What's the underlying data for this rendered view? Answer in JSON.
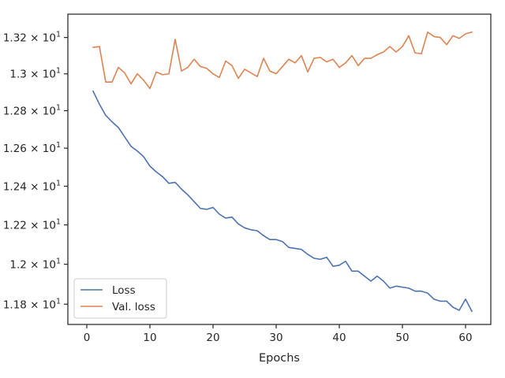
{
  "chart_data": {
    "type": "line",
    "title": "",
    "xlabel": "Epochs",
    "ylabel": "",
    "xlim": [
      -3,
      64
    ],
    "ylim": [
      11.7,
      13.33
    ],
    "yscale": "log",
    "grid": false,
    "legend_placement": "lower-left",
    "x_ticks": [
      {
        "value": 0,
        "label": "0"
      },
      {
        "value": 10,
        "label": "10"
      },
      {
        "value": 20,
        "label": "20"
      },
      {
        "value": 30,
        "label": "30"
      },
      {
        "value": 40,
        "label": "40"
      },
      {
        "value": 50,
        "label": "50"
      },
      {
        "value": 60,
        "label": "60"
      }
    ],
    "y_ticks": [
      {
        "value": 13.2,
        "label": "1.32 × 10",
        "exp": "1"
      },
      {
        "value": 13.0,
        "label": "1.3 × 10",
        "exp": "1"
      },
      {
        "value": 12.8,
        "label": "1.28 × 10",
        "exp": "1"
      },
      {
        "value": 12.6,
        "label": "1.26 × 10",
        "exp": "1"
      },
      {
        "value": 12.4,
        "label": "1.24 × 10",
        "exp": "1"
      },
      {
        "value": 12.2,
        "label": "1.22 × 10",
        "exp": "1"
      },
      {
        "value": 12.0,
        "label": "1.2 × 10",
        "exp": "1"
      },
      {
        "value": 11.8,
        "label": "1.18 × 10",
        "exp": "1"
      }
    ],
    "x": [
      1,
      2,
      3,
      4,
      5,
      6,
      7,
      8,
      9,
      10,
      11,
      12,
      13,
      14,
      15,
      16,
      17,
      18,
      19,
      20,
      21,
      22,
      23,
      24,
      25,
      26,
      27,
      28,
      29,
      30,
      31,
      32,
      33,
      34,
      35,
      36,
      37,
      38,
      39,
      40,
      41,
      42,
      43,
      44,
      45,
      46,
      47,
      48,
      49,
      50,
      51,
      52,
      53,
      54,
      55,
      56,
      57,
      58,
      59,
      60,
      61
    ],
    "series": [
      {
        "name": "Loss",
        "color": "#4c72b0",
        "values": [
          12.905,
          12.835,
          12.775,
          12.74,
          12.71,
          12.66,
          12.61,
          12.585,
          12.555,
          12.505,
          12.475,
          12.45,
          12.415,
          12.42,
          12.385,
          12.355,
          12.32,
          12.285,
          12.28,
          12.29,
          12.255,
          12.235,
          12.24,
          12.205,
          12.185,
          12.175,
          12.17,
          12.145,
          12.125,
          12.125,
          12.115,
          12.085,
          12.08,
          12.075,
          12.05,
          12.03,
          12.025,
          12.035,
          11.99,
          11.995,
          12.015,
          11.965,
          11.965,
          11.94,
          11.915,
          11.94,
          11.915,
          11.88,
          11.89,
          11.885,
          11.88,
          11.865,
          11.865,
          11.855,
          11.825,
          11.815,
          11.815,
          11.785,
          11.77,
          11.825,
          11.765
        ]
      },
      {
        "name": "Val. loss",
        "color": "#dd8452",
        "values": [
          13.145,
          13.15,
          12.955,
          12.955,
          13.035,
          13.005,
          12.945,
          13.0,
          12.965,
          12.92,
          13.01,
          12.995,
          13.0,
          13.19,
          13.015,
          13.035,
          13.08,
          13.04,
          13.03,
          13.0,
          12.98,
          13.07,
          13.045,
          12.975,
          13.025,
          13.005,
          12.985,
          13.085,
          13.015,
          13.0,
          13.04,
          13.08,
          13.06,
          13.1,
          13.01,
          13.085,
          13.09,
          13.065,
          13.08,
          13.035,
          13.06,
          13.1,
          13.045,
          13.085,
          13.085,
          13.105,
          13.12,
          13.15,
          13.12,
          13.15,
          13.21,
          13.115,
          13.11,
          13.23,
          13.205,
          13.2,
          13.16,
          13.21,
          13.195,
          13.22,
          13.23
        ]
      }
    ]
  }
}
